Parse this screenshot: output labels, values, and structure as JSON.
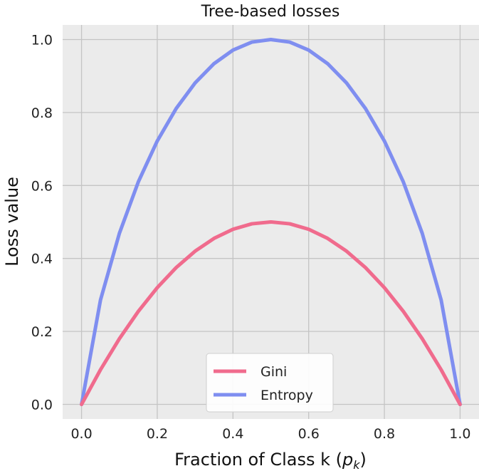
{
  "chart_data": {
    "type": "line",
    "title": "Tree-based losses",
    "xlabel_main": "Fraction of Class k (",
    "xlabel_math": "p",
    "xlabel_sub": "k",
    "xlabel_close": ")",
    "ylabel": "Loss value",
    "xlim": [
      -0.05,
      1.05
    ],
    "ylim": [
      -0.04,
      1.04
    ],
    "xticks": [
      0.0,
      0.2,
      0.4,
      0.6,
      0.8,
      1.0
    ],
    "xtick_labels": [
      "0.0",
      "0.2",
      "0.4",
      "0.6",
      "0.8",
      "1.0"
    ],
    "yticks": [
      0.0,
      0.2,
      0.4,
      0.6,
      0.8,
      1.0
    ],
    "ytick_labels": [
      "0.0",
      "0.2",
      "0.4",
      "0.6",
      "0.8",
      "1.0"
    ],
    "grid": true,
    "legend_position": "bottom-center",
    "background_color": "#ebebeb",
    "grid_color": "#c4c4c4",
    "x": [
      0.0,
      0.05,
      0.1,
      0.15,
      0.2,
      0.25,
      0.3,
      0.35,
      0.4,
      0.45,
      0.5,
      0.55,
      0.6,
      0.65,
      0.7,
      0.75,
      0.8,
      0.85,
      0.9,
      0.95,
      1.0
    ],
    "series": [
      {
        "name": "Gini",
        "color": "#f06b8d",
        "values": [
          0.0,
          0.095,
          0.18,
          0.255,
          0.32,
          0.375,
          0.42,
          0.455,
          0.48,
          0.495,
          0.5,
          0.495,
          0.48,
          0.455,
          0.42,
          0.375,
          0.32,
          0.255,
          0.18,
          0.095,
          0.0
        ]
      },
      {
        "name": "Entropy",
        "color": "#7f8ef0",
        "values": [
          0.0,
          0.286,
          0.469,
          0.61,
          0.722,
          0.811,
          0.881,
          0.934,
          0.971,
          0.993,
          1.0,
          0.993,
          0.971,
          0.934,
          0.881,
          0.811,
          0.722,
          0.61,
          0.469,
          0.286,
          0.0
        ]
      }
    ]
  }
}
